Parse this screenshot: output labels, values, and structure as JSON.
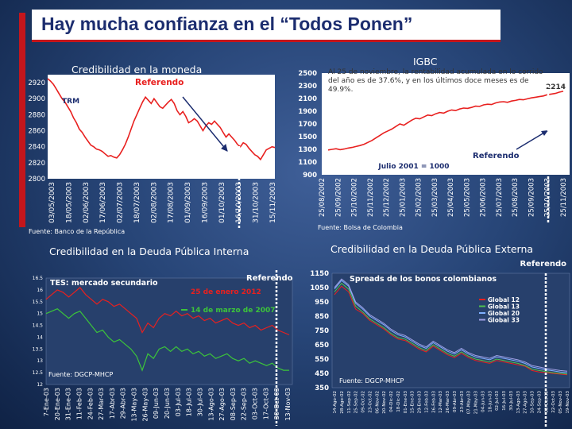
{
  "page": {
    "title": "Hay mucha confianza en el “Todos Ponen”",
    "accent": "#c4161c",
    "title_color": "#1c2d6f"
  },
  "panels": {
    "moneda": {
      "title": "Credibilidad en la moneda",
      "source": "Fuente: Banco de la República"
    },
    "igbc": {
      "title": "IGBC",
      "source": "Fuente: Bolsa de Colombia"
    },
    "interna": {
      "title": "Credibilidad en la Deuda Pública Interna",
      "source": "Fuente: DGCP-MHCP"
    },
    "externa": {
      "title": "Credibilidad en la Deuda Pública Externa",
      "source": "Fuente: DGCP-MHCP"
    }
  },
  "chart_data": [
    {
      "id": "trm",
      "type": "line",
      "series_label": "TRM",
      "annotation": "Referendo",
      "line_color": "#e8201f",
      "ylim": [
        2800,
        2930
      ],
      "yticks": [
        2800,
        2820,
        2840,
        2860,
        2880,
        2900,
        2920
      ],
      "xticks": [
        "03/05/2003",
        "18/05/2003",
        "02/06/2003",
        "17/06/2003",
        "02/07/2003",
        "18/07/2003",
        "02/08/2003",
        "17/08/2003",
        "01/09/2003",
        "16/09/2003",
        "01/10/2003",
        "16/10/2003",
        "31/10/2003",
        "15/11/2003"
      ],
      "values": [
        2925,
        2922,
        2918,
        2912,
        2906,
        2900,
        2896,
        2890,
        2884,
        2876,
        2870,
        2862,
        2858,
        2852,
        2847,
        2842,
        2840,
        2837,
        2836,
        2834,
        2831,
        2828,
        2829,
        2827,
        2826,
        2830,
        2836,
        2843,
        2852,
        2862,
        2872,
        2880,
        2888,
        2896,
        2902,
        2898,
        2894,
        2900,
        2895,
        2890,
        2888,
        2892,
        2896,
        2899,
        2894,
        2885,
        2880,
        2884,
        2878,
        2870,
        2872,
        2875,
        2872,
        2866,
        2860,
        2866,
        2870,
        2868,
        2872,
        2868,
        2864,
        2858,
        2852,
        2856,
        2852,
        2848,
        2843,
        2840,
        2845,
        2843,
        2838,
        2834,
        2830,
        2828,
        2824,
        2830,
        2836,
        2838,
        2840,
        2839
      ]
    },
    {
      "id": "igbc",
      "type": "line",
      "annotation": "Referendo",
      "note": "Al 25 de noviembre, la rentabilidad acumulada en lo corrido del año es de 37.6%, y en los últimos doce meses es de 49.9%.",
      "base_label": "Julio 2001 = 1000",
      "last_value_label": "2214",
      "line_color": "#e8201f",
      "ylim": [
        900,
        2500
      ],
      "yticks": [
        900,
        1100,
        1300,
        1500,
        1700,
        1900,
        2100,
        2300,
        2500
      ],
      "xticks": [
        "25/08/2002",
        "25/09/2002",
        "25/10/2002",
        "25/11/2002",
        "25/12/2002",
        "25/01/2003",
        "25/02/2003",
        "25/03/2003",
        "25/04/2003",
        "25/05/2003",
        "25/06/2003",
        "25/07/2003",
        "25/08/2003",
        "25/09/2003",
        "25/10/2003",
        "25/11/2003"
      ],
      "values": [
        1290,
        1300,
        1310,
        1295,
        1305,
        1320,
        1330,
        1345,
        1360,
        1380,
        1410,
        1440,
        1480,
        1520,
        1560,
        1590,
        1620,
        1660,
        1700,
        1680,
        1720,
        1760,
        1790,
        1780,
        1810,
        1840,
        1830,
        1860,
        1880,
        1870,
        1900,
        1920,
        1910,
        1935,
        1950,
        1945,
        1960,
        1980,
        1975,
        2000,
        2010,
        2005,
        2030,
        2045,
        2050,
        2040,
        2060,
        2070,
        2085,
        2080,
        2095,
        2110,
        2120,
        2130,
        2140,
        2160,
        2170,
        2180,
        2200,
        2214
      ]
    },
    {
      "id": "tes",
      "type": "line",
      "series_label": "TES: mercado secundario",
      "annotation": "Referendo",
      "legend": [
        "25 de enero 2012",
        "14 de marzo de 2007"
      ],
      "colors": [
        "#e8201f",
        "#3cc43a"
      ],
      "ylim": [
        12,
        16.5
      ],
      "yticks": [
        12,
        12.5,
        13,
        13.5,
        14,
        14.5,
        15,
        15.5,
        16,
        16.5
      ],
      "xticks": [
        "7-Ene-03",
        "20-Ene-03",
        "31-Ene-03",
        "11-Feb-03",
        "24-Feb-03",
        "27-Mar-03",
        "17-Abr-03",
        "29-Abr-03",
        "13-May-03",
        "26-May-03",
        "09-Jun-03",
        "20-Jun-03",
        "03-Jul-03",
        "18-Jul-03",
        "30-Jul-03",
        "13-Ago-03",
        "27-Ago-03",
        "08-Sep-03",
        "22-Sep-03",
        "03-Oct-03",
        "17-Oct-03",
        "30-Oct-03",
        "13-Nov-03"
      ],
      "series": [
        {
          "name": "25 de enero 2012",
          "values": [
            15.6,
            15.8,
            16.0,
            15.9,
            15.7,
            15.9,
            16.1,
            15.8,
            15.6,
            15.4,
            15.6,
            15.5,
            15.3,
            15.4,
            15.2,
            15.0,
            14.8,
            14.2,
            14.6,
            14.4,
            14.8,
            15.0,
            14.9,
            15.1,
            14.9,
            15.0,
            14.8,
            14.9,
            14.7,
            14.8,
            14.6,
            14.7,
            14.8,
            14.6,
            14.5,
            14.6,
            14.4,
            14.5,
            14.3,
            14.4,
            14.5,
            14.3,
            14.2,
            14.1
          ]
        },
        {
          "name": "14 de marzo de 2007",
          "values": [
            15.0,
            15.1,
            15.2,
            15.0,
            14.8,
            15.0,
            15.1,
            14.8,
            14.5,
            14.2,
            14.3,
            14.0,
            13.8,
            13.9,
            13.7,
            13.5,
            13.2,
            12.6,
            13.3,
            13.1,
            13.5,
            13.6,
            13.4,
            13.6,
            13.4,
            13.5,
            13.3,
            13.4,
            13.2,
            13.3,
            13.1,
            13.2,
            13.3,
            13.1,
            13.0,
            13.1,
            12.9,
            13.0,
            12.9,
            12.8,
            12.9,
            12.7,
            12.6,
            12.6
          ]
        }
      ]
    },
    {
      "id": "spreads",
      "type": "line",
      "series_label": "Spreads de los bonos colombianos",
      "annotation": "Referendo",
      "legend": [
        "Global 12",
        "Global 13",
        "Global 20",
        "Global 33"
      ],
      "colors": [
        "#e8201f",
        "#4fc04f",
        "#7fb0ff",
        "#a0a0e6"
      ],
      "ylim": [
        350,
        1150
      ],
      "yticks": [
        350,
        450,
        550,
        650,
        750,
        850,
        950,
        1050,
        1150
      ],
      "xticks": [
        "14-Ago-02",
        "28-Ago-02",
        "11-Sep-02",
        "25-Sep-02",
        "09-Oct-02",
        "23-Oct-02",
        "06-Nov-02",
        "20-Nov-02",
        "04-Dic-02",
        "18-Dic-02",
        "01-Ene-03",
        "15-Ene-03",
        "29-Ene-03",
        "12-Feb-03",
        "26-Feb-03",
        "12-Mar-03",
        "26-Mar-03",
        "09-Abr-03",
        "23-Abr-03",
        "07-May-03",
        "21-May-03",
        "04-Jun-03",
        "18-Jun-03",
        "02-Jul-03",
        "16-Jul-03",
        "30-Jul-03",
        "13-Ago-03",
        "27-Ago-03",
        "10-Sep-03",
        "24-Sep-03",
        "08-Oct-03",
        "22-Oct-03",
        "05-Nov-03",
        "19-Nov-03"
      ],
      "series": [
        {
          "name": "Global 12",
          "values": [
            1000,
            1060,
            1020,
            900,
            870,
            820,
            790,
            760,
            720,
            690,
            680,
            650,
            620,
            600,
            640,
            610,
            580,
            560,
            590,
            560,
            540,
            530,
            520,
            540,
            530,
            520,
            510,
            500,
            470,
            460,
            455,
            450,
            445,
            440
          ]
        },
        {
          "name": "Global 13",
          "values": [
            1020,
            1080,
            1040,
            920,
            880,
            830,
            800,
            770,
            730,
            700,
            690,
            660,
            630,
            610,
            650,
            620,
            590,
            570,
            600,
            570,
            550,
            540,
            530,
            550,
            540,
            530,
            520,
            505,
            480,
            470,
            462,
            455,
            450,
            445
          ]
        },
        {
          "name": "Global 20",
          "values": [
            1040,
            1100,
            1060,
            940,
            900,
            850,
            820,
            790,
            750,
            720,
            705,
            675,
            645,
            625,
            665,
            635,
            605,
            585,
            615,
            585,
            565,
            555,
            545,
            565,
            555,
            545,
            535,
            520,
            495,
            485,
            475,
            468,
            460,
            455
          ]
        },
        {
          "name": "Global 33",
          "values": [
            1050,
            1110,
            1070,
            950,
            910,
            860,
            830,
            800,
            760,
            730,
            715,
            685,
            655,
            635,
            675,
            645,
            615,
            595,
            625,
            595,
            575,
            565,
            555,
            575,
            565,
            555,
            545,
            530,
            505,
            495,
            485,
            478,
            470,
            465
          ]
        }
      ]
    }
  ]
}
